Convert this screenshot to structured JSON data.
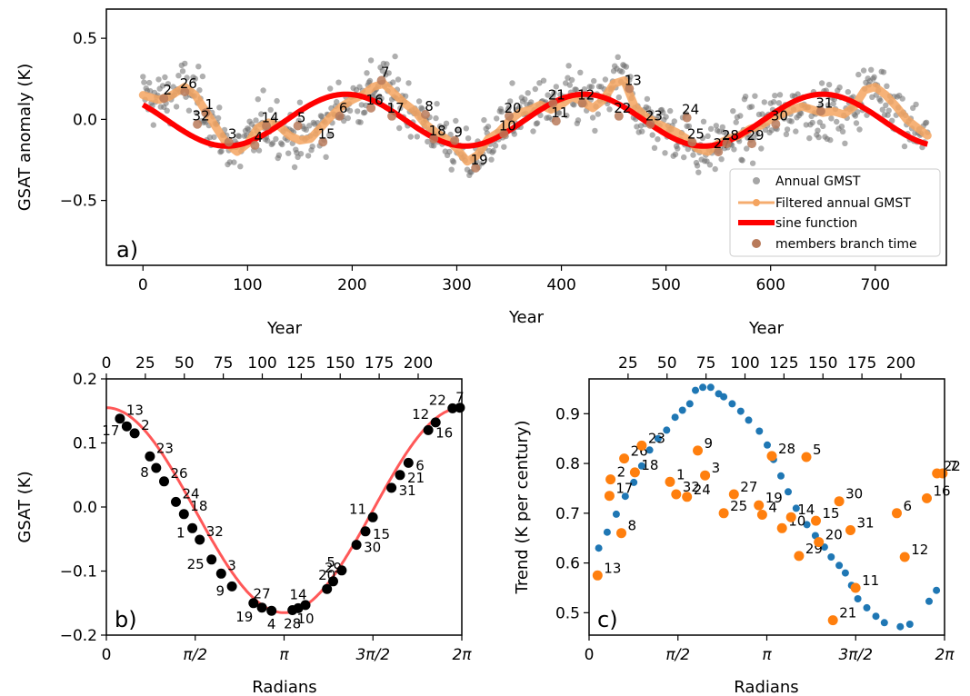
{
  "chart_data": [
    {
      "panel": "a",
      "type": "scatter",
      "panel_label": "a)",
      "xlabel": "Year",
      "ylabel": "GSAT anomaly (K)",
      "xlim": [
        -35,
        768
      ],
      "ylim": [
        -0.9,
        0.68
      ],
      "xticks": [
        0,
        100,
        200,
        300,
        400,
        500,
        600,
        700
      ],
      "yticks": [
        -0.5,
        0.0,
        0.5
      ],
      "ytick_labels": [
        "−0.5",
        "0.0",
        "0.5"
      ],
      "legend_position": "lower right",
      "legend": [
        "Annual GMST",
        "Filtered annual GMST",
        "sine function",
        "members branch time"
      ],
      "colors": {
        "scatter": "#5a5a5a",
        "filtered": "#f4a460",
        "sine": "#ff0000",
        "members": "#b87a5a"
      },
      "sine": {
        "mean": -0.005,
        "amplitude": 0.16,
        "period": 228,
        "phase_year": -34
      },
      "scatter_noise_sd": 0.12,
      "series": [
        {
          "name": "Filtered annual GMST",
          "x": [
            0,
            15,
            25,
            40,
            50,
            60,
            70,
            80,
            90,
            100,
            110,
            120,
            130,
            140,
            150,
            160,
            170,
            180,
            190,
            200,
            210,
            220,
            230,
            240,
            250,
            260,
            270,
            280,
            290,
            300,
            310,
            320,
            330,
            340,
            350,
            360,
            370,
            380,
            390,
            400,
            410,
            420,
            430,
            440,
            450,
            460,
            470,
            480,
            490,
            500,
            510,
            520,
            530,
            540,
            550,
            560,
            570,
            580,
            590,
            600,
            610,
            620,
            630,
            640,
            650,
            660,
            670,
            680,
            690,
            700,
            710,
            720,
            730,
            740,
            750
          ],
          "y": [
            0.15,
            0.12,
            0.14,
            0.2,
            0.15,
            0.05,
            -0.05,
            -0.15,
            -0.2,
            -0.15,
            -0.05,
            -0.02,
            -0.04,
            -0.1,
            -0.13,
            -0.12,
            -0.05,
            0.02,
            0.08,
            0.12,
            0.15,
            0.2,
            0.22,
            0.16,
            0.1,
            0.05,
            -0.03,
            -0.08,
            -0.12,
            -0.18,
            -0.26,
            -0.22,
            -0.12,
            -0.08,
            -0.01,
            0.04,
            0.06,
            0.09,
            0.06,
            0.09,
            0.14,
            0.11,
            0.07,
            0.12,
            0.22,
            0.24,
            0.08,
            0.02,
            -0.02,
            -0.05,
            -0.08,
            -0.12,
            -0.18,
            -0.2,
            -0.15,
            -0.12,
            -0.1,
            -0.06,
            -0.04,
            0.0,
            0.03,
            0.06,
            0.08,
            0.06,
            0.04,
            0.05,
            0.03,
            0.08,
            0.18,
            0.2,
            0.15,
            0.08,
            0.0,
            -0.05,
            -0.1
          ]
        },
        {
          "name": "members branch time",
          "points": [
            {
              "label": "2",
              "x": 20,
              "y": 0.13
            },
            {
              "label": "26",
              "x": 40,
              "y": 0.17
            },
            {
              "label": "1",
              "x": 60,
              "y": 0.04
            },
            {
              "label": "32",
              "x": 52,
              "y": -0.03
            },
            {
              "label": "3",
              "x": 82,
              "y": -0.14
            },
            {
              "label": "4",
              "x": 107,
              "y": -0.16
            },
            {
              "label": "14",
              "x": 118,
              "y": -0.04
            },
            {
              "label": "5",
              "x": 148,
              "y": -0.04
            },
            {
              "label": "15",
              "x": 172,
              "y": -0.14
            },
            {
              "label": "6",
              "x": 188,
              "y": 0.02
            },
            {
              "label": "16",
              "x": 218,
              "y": 0.07
            },
            {
              "label": "7",
              "x": 228,
              "y": 0.24
            },
            {
              "label": "17",
              "x": 238,
              "y": 0.02
            },
            {
              "label": "8",
              "x": 270,
              "y": 0.03
            },
            {
              "label": "18",
              "x": 278,
              "y": -0.12
            },
            {
              "label": "9",
              "x": 298,
              "y": -0.13
            },
            {
              "label": "19",
              "x": 318,
              "y": -0.3
            },
            {
              "label": "10",
              "x": 345,
              "y": -0.09
            },
            {
              "label": "20",
              "x": 350,
              "y": 0.02
            },
            {
              "label": "11",
              "x": 395,
              "y": -0.01
            },
            {
              "label": "21",
              "x": 392,
              "y": 0.1
            },
            {
              "label": "12",
              "x": 420,
              "y": 0.1
            },
            {
              "label": "22",
              "x": 455,
              "y": 0.02
            },
            {
              "label": "13",
              "x": 465,
              "y": 0.19
            },
            {
              "label": "23",
              "x": 485,
              "y": -0.03
            },
            {
              "label": "24",
              "x": 520,
              "y": 0.01
            },
            {
              "label": "25",
              "x": 525,
              "y": -0.14
            },
            {
              "label": "27",
              "x": 550,
              "y": -0.2
            },
            {
              "label": "28",
              "x": 558,
              "y": -0.15
            },
            {
              "label": "29",
              "x": 582,
              "y": -0.15
            },
            {
              "label": "30",
              "x": 605,
              "y": -0.03
            },
            {
              "label": "31",
              "x": 648,
              "y": 0.05
            }
          ]
        }
      ]
    },
    {
      "panel": "b",
      "type": "line",
      "panel_label": "b)",
      "xlabel": "Radians",
      "ylabel": "GSAT (K)",
      "top_xlabel": "Year",
      "xlim": [
        0,
        6.2832
      ],
      "ylim": [
        -0.2,
        0.2
      ],
      "xtick_labels": [
        "0",
        "π/2",
        "π",
        "3π/2",
        "2π"
      ],
      "yticks": [
        -0.2,
        -0.1,
        0.0,
        0.1,
        0.2
      ],
      "ytick_labels": [
        "−0.2",
        "−0.1",
        "0.0",
        "0.1",
        "0.2"
      ],
      "top_xticks": [
        0,
        25,
        50,
        75,
        100,
        125,
        150,
        175,
        200
      ],
      "top_xlim": [
        0,
        228
      ],
      "sine": {
        "mean": -0.005,
        "amplitude": 0.16
      },
      "colors": {
        "line": "#ff3b3b",
        "points": "#000000"
      },
      "points": [
        {
          "label": "13",
          "x": 0.24,
          "y": 0.138
        },
        {
          "label": "17",
          "x": 0.36,
          "y": 0.126
        },
        {
          "label": "2",
          "x": 0.5,
          "y": 0.115
        },
        {
          "label": "23",
          "x": 0.77,
          "y": 0.079
        },
        {
          "label": "8",
          "x": 0.88,
          "y": 0.061
        },
        {
          "label": "26",
          "x": 1.02,
          "y": 0.04
        },
        {
          "label": "24",
          "x": 1.23,
          "y": 0.008
        },
        {
          "label": "18",
          "x": 1.37,
          "y": -0.011
        },
        {
          "label": "1",
          "x": 1.52,
          "y": -0.033
        },
        {
          "label": "32",
          "x": 1.65,
          "y": -0.051
        },
        {
          "label": "25",
          "x": 1.86,
          "y": -0.082
        },
        {
          "label": "3",
          "x": 2.03,
          "y": -0.104
        },
        {
          "label": "9",
          "x": 2.22,
          "y": -0.124
        },
        {
          "label": "19",
          "x": 2.6,
          "y": -0.15
        },
        {
          "label": "27",
          "x": 2.75,
          "y": -0.157
        },
        {
          "label": "4",
          "x": 2.92,
          "y": -0.162
        },
        {
          "label": "28",
          "x": 3.29,
          "y": -0.161
        },
        {
          "label": "14",
          "x": 3.39,
          "y": -0.158
        },
        {
          "label": "10",
          "x": 3.52,
          "y": -0.153
        },
        {
          "label": "20",
          "x": 3.9,
          "y": -0.128
        },
        {
          "label": "29",
          "x": 4.01,
          "y": -0.116
        },
        {
          "label": "5",
          "x": 4.16,
          "y": -0.099
        },
        {
          "label": "30",
          "x": 4.42,
          "y": -0.059
        },
        {
          "label": "15",
          "x": 4.58,
          "y": -0.038
        },
        {
          "label": "11",
          "x": 4.71,
          "y": -0.016
        },
        {
          "label": "31",
          "x": 5.04,
          "y": 0.03
        },
        {
          "label": "21",
          "x": 5.19,
          "y": 0.05
        },
        {
          "label": "6",
          "x": 5.34,
          "y": 0.069
        },
        {
          "label": "16",
          "x": 5.69,
          "y": 0.12
        },
        {
          "label": "12",
          "x": 5.82,
          "y": 0.132
        },
        {
          "label": "22",
          "x": 6.12,
          "y": 0.154
        },
        {
          "label": "7",
          "x": 6.25,
          "y": 0.155
        }
      ]
    },
    {
      "panel": "c",
      "type": "scatter",
      "panel_label": "c)",
      "xlabel": "Radians",
      "ylabel": "Trend (K per century)",
      "top_xlabel": "Year",
      "xlim": [
        0,
        6.2832
      ],
      "ylim": [
        0.455,
        0.97
      ],
      "xtick_labels": [
        "0",
        "π/2",
        "π",
        "3π/2",
        "2π"
      ],
      "yticks": [
        0.5,
        0.6,
        0.7,
        0.8,
        0.9
      ],
      "ytick_labels": [
        "0.5",
        "0.6",
        "0.7",
        "0.8",
        "0.9"
      ],
      "top_xticks": [
        25,
        50,
        75,
        100,
        125,
        150,
        175,
        200
      ],
      "top_xlim": [
        0,
        228
      ],
      "colors": {
        "blue": "#1f77b4",
        "orange": "#ff7f0e"
      },
      "series": [
        {
          "name": "blue",
          "x": [
            0.17,
            0.32,
            0.48,
            0.64,
            0.79,
            0.93,
            1.07,
            1.22,
            1.37,
            1.52,
            1.65,
            1.78,
            1.88,
            2.01,
            2.15,
            2.29,
            2.38,
            2.53,
            2.68,
            2.82,
            3.01,
            3.15,
            3.26,
            3.39,
            3.52,
            3.66,
            3.85,
            4.0,
            4.16,
            4.28,
            4.42,
            4.53,
            4.64,
            4.75,
            4.91,
            5.07,
            5.22,
            5.5,
            5.67,
            6.01,
            6.14
          ],
          "y": [
            0.63,
            0.662,
            0.698,
            0.734,
            0.762,
            0.795,
            0.827,
            0.85,
            0.867,
            0.893,
            0.907,
            0.92,
            0.947,
            0.953,
            0.953,
            0.94,
            0.934,
            0.92,
            0.905,
            0.887,
            0.865,
            0.837,
            0.808,
            0.775,
            0.743,
            0.71,
            0.677,
            0.655,
            0.632,
            0.612,
            0.595,
            0.58,
            0.555,
            0.528,
            0.51,
            0.493,
            0.48,
            0.472,
            0.477,
            0.523,
            0.545
          ]
        },
        {
          "name": "orange",
          "points": [
            {
              "label": "13",
              "x": 0.15,
              "y": 0.575
            },
            {
              "label": "2",
              "x": 0.38,
              "y": 0.768
            },
            {
              "label": "17",
              "x": 0.36,
              "y": 0.735
            },
            {
              "label": "26",
              "x": 0.62,
              "y": 0.81
            },
            {
              "label": "18",
              "x": 0.81,
              "y": 0.782
            },
            {
              "label": "8",
              "x": 0.57,
              "y": 0.66
            },
            {
              "label": "23",
              "x": 0.93,
              "y": 0.836
            },
            {
              "label": "1",
              "x": 1.43,
              "y": 0.763
            },
            {
              "label": "32",
              "x": 1.54,
              "y": 0.738
            },
            {
              "label": "24",
              "x": 1.73,
              "y": 0.733
            },
            {
              "label": "9",
              "x": 1.92,
              "y": 0.826
            },
            {
              "label": "3",
              "x": 2.05,
              "y": 0.776
            },
            {
              "label": "25",
              "x": 2.38,
              "y": 0.7
            },
            {
              "label": "27",
              "x": 2.56,
              "y": 0.738
            },
            {
              "label": "19",
              "x": 3.0,
              "y": 0.716
            },
            {
              "label": "28",
              "x": 3.23,
              "y": 0.815
            },
            {
              "label": "4",
              "x": 3.06,
              "y": 0.697
            },
            {
              "label": "10",
              "x": 3.41,
              "y": 0.67
            },
            {
              "label": "14",
              "x": 3.57,
              "y": 0.692
            },
            {
              "label": "29",
              "x": 3.71,
              "y": 0.614
            },
            {
              "label": "20",
              "x": 4.06,
              "y": 0.642
            },
            {
              "label": "15",
              "x": 4.01,
              "y": 0.685
            },
            {
              "label": "5",
              "x": 3.84,
              "y": 0.813
            },
            {
              "label": "30",
              "x": 4.42,
              "y": 0.724
            },
            {
              "label": "31",
              "x": 4.62,
              "y": 0.666
            },
            {
              "label": "21",
              "x": 4.31,
              "y": 0.485
            },
            {
              "label": "11",
              "x": 4.71,
              "y": 0.55
            },
            {
              "label": "6",
              "x": 5.44,
              "y": 0.7
            },
            {
              "label": "12",
              "x": 5.58,
              "y": 0.612
            },
            {
              "label": "16",
              "x": 5.97,
              "y": 0.73
            },
            {
              "label": "22",
              "x": 6.15,
              "y": 0.78
            },
            {
              "label": "7",
              "x": 6.25,
              "y": 0.78
            }
          ]
        }
      ]
    }
  ]
}
